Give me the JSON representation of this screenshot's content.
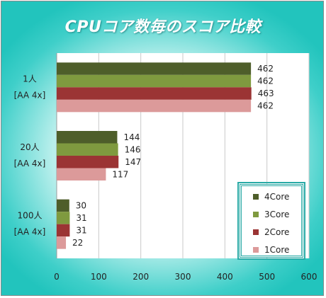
{
  "chart_data": {
    "type": "bar",
    "orientation": "horizontal",
    "title": "CPUコア数毎のスコア比較",
    "categories": [
      {
        "line1": "1人",
        "line2": "[AA 4x]"
      },
      {
        "line1": "20人",
        "line2": "[AA 4x]"
      },
      {
        "line1": "100人",
        "line2": "[AA 4x]"
      }
    ],
    "series": [
      {
        "name": "4Core",
        "color": "#4e5e2a",
        "values": [
          462,
          144,
          30
        ]
      },
      {
        "name": "3Core",
        "color": "#7f9a3f",
        "values": [
          462,
          146,
          31
        ]
      },
      {
        "name": "2Core",
        "color": "#9b3434",
        "values": [
          463,
          147,
          31
        ]
      },
      {
        "name": "1Core",
        "color": "#dc9a9a",
        "values": [
          462,
          117,
          22
        ]
      }
    ],
    "xlim": [
      0,
      600
    ],
    "xticks": [
      "0",
      "100",
      "200",
      "300",
      "400",
      "500",
      "600"
    ],
    "grid": true,
    "legend_position": "bottom-right"
  }
}
